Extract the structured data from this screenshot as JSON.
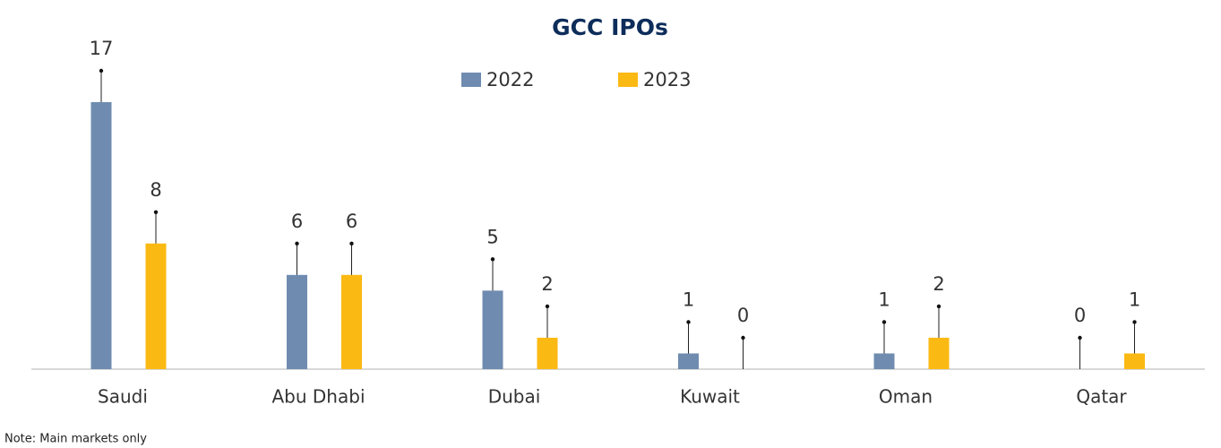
{
  "chart_data": {
    "type": "bar",
    "title": "GCC IPOs",
    "categories": [
      "Saudi",
      "Abu Dhabi",
      "Dubai",
      "Kuwait",
      "Oman",
      "Qatar"
    ],
    "series": [
      {
        "name": "2022",
        "color": "#6f8cb0",
        "values": [
          17,
          6,
          5,
          1,
          1,
          0
        ]
      },
      {
        "name": "2023",
        "color": "#fbb913",
        "values": [
          8,
          6,
          2,
          0,
          2,
          1
        ]
      }
    ],
    "ylim": [
      0,
      17
    ],
    "note": "Note: Main markets only"
  }
}
